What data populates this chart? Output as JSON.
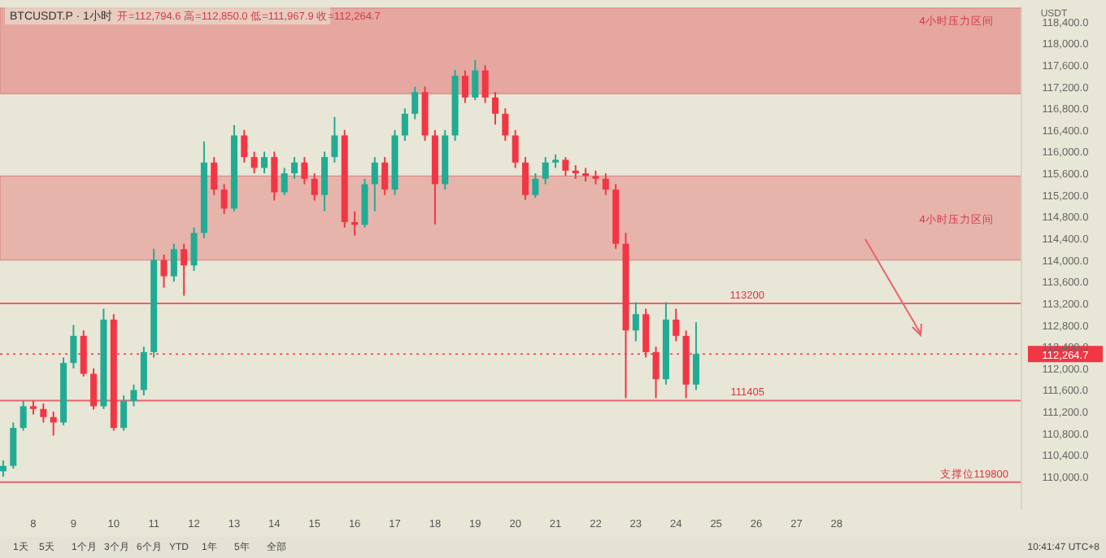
{
  "chart_data": {
    "type": "candlestick",
    "title": "BTCUSDT.P · 1小时",
    "ylabel": "USDT",
    "annotations": [
      "开=112,794.6 高=112,850.0 低=111,967.9 收=112,264.7",
      "1天",
      "5天",
      "1个月",
      "3个月",
      "6个月",
      "YTD",
      "1年",
      "5年",
      "全部",
      "10:41:47 UTC+8"
    ],
    "x": [
      7.25,
      7.5,
      7.75,
      8,
      8.25,
      8.5,
      8.75,
      9,
      9.25,
      9.5,
      9.75,
      10,
      10.25,
      10.5,
      10.75,
      11,
      11.25,
      11.5,
      11.75,
      12,
      12.25,
      12.5,
      12.75,
      13,
      13.25,
      13.5,
      13.75,
      14,
      14.25,
      14.5,
      14.75,
      15,
      15.25,
      15.5,
      15.75,
      16,
      16.25,
      16.5,
      16.75,
      17,
      17.25,
      17.5,
      17.75,
      18,
      18.25,
      18.5,
      18.75,
      19,
      19.25,
      19.5,
      19.75,
      20,
      20.25,
      20.5,
      20.75,
      21,
      21.25,
      21.5,
      21.75,
      22,
      22.25,
      22.5,
      22.75,
      23,
      23.25,
      23.5,
      23.75,
      24,
      24.25,
      24.5
    ],
    "ohlc": [
      [
        110100,
        110300,
        110000,
        110200
      ],
      [
        110200,
        111000,
        110150,
        110900
      ],
      [
        110900,
        111400,
        110850,
        111300
      ],
      [
        111300,
        111400,
        111150,
        111250
      ],
      [
        111250,
        111350,
        111000,
        111100
      ],
      [
        111100,
        111200,
        110760,
        111000
      ],
      [
        111000,
        112200,
        110950,
        112100
      ],
      [
        112100,
        112800,
        112000,
        112600
      ],
      [
        112600,
        112700,
        111850,
        111900
      ],
      [
        111900,
        112000,
        111240,
        111300
      ],
      [
        111300,
        113100,
        111250,
        112900
      ],
      [
        112900,
        113000,
        110850,
        110900
      ],
      [
        110900,
        111500,
        110850,
        111400
      ],
      [
        111400,
        111700,
        111300,
        111600
      ],
      [
        111600,
        112400,
        111500,
        112300
      ],
      [
        112300,
        114210,
        112200,
        114000
      ],
      [
        114000,
        114100,
        113490,
        113700
      ],
      [
        113700,
        114300,
        113600,
        114200
      ],
      [
        114200,
        114300,
        113340,
        113900
      ],
      [
        113900,
        114600,
        113800,
        114500
      ],
      [
        114500,
        116190,
        114400,
        115800
      ],
      [
        115800,
        115900,
        115200,
        115300
      ],
      [
        115300,
        115400,
        114850,
        114950
      ],
      [
        114950,
        116490,
        114900,
        116300
      ],
      [
        116300,
        116400,
        115800,
        115900
      ],
      [
        115900,
        116000,
        115600,
        115700
      ],
      [
        115700,
        116000,
        115600,
        115900
      ],
      [
        115900,
        116000,
        115100,
        115250
      ],
      [
        115250,
        115700,
        115200,
        115600
      ],
      [
        115600,
        115900,
        115500,
        115800
      ],
      [
        115800,
        115900,
        115400,
        115500
      ],
      [
        115500,
        115600,
        115100,
        115200
      ],
      [
        115200,
        116000,
        114900,
        115900
      ],
      [
        115900,
        116640,
        115800,
        116300
      ],
      [
        116300,
        116400,
        114600,
        114700
      ],
      [
        114700,
        114900,
        114450,
        114650
      ],
      [
        114650,
        115500,
        114600,
        115400
      ],
      [
        115400,
        115900,
        114900,
        115800
      ],
      [
        115800,
        115900,
        115200,
        115300
      ],
      [
        115300,
        116400,
        115200,
        116300
      ],
      [
        116300,
        116800,
        116200,
        116700
      ],
      [
        116700,
        117200,
        116600,
        117100
      ],
      [
        117100,
        117200,
        116200,
        116300
      ],
      [
        116300,
        116400,
        114660,
        115400
      ],
      [
        115400,
        116400,
        115300,
        116300
      ],
      [
        116300,
        117510,
        116200,
        117400
      ],
      [
        117400,
        117500,
        116900,
        117000
      ],
      [
        117000,
        117690,
        116950,
        117500
      ],
      [
        117500,
        117600,
        116900,
        117000
      ],
      [
        117000,
        117100,
        116500,
        116700
      ],
      [
        116700,
        116800,
        116200,
        116300
      ],
      [
        116300,
        116400,
        115700,
        115800
      ],
      [
        115800,
        115900,
        115110,
        115200
      ],
      [
        115200,
        115600,
        115150,
        115500
      ],
      [
        115500,
        115900,
        115400,
        115800
      ],
      [
        115800,
        115950,
        115700,
        115850
      ],
      [
        115850,
        115900,
        115550,
        115650
      ],
      [
        115650,
        115750,
        115500,
        115600
      ],
      [
        115600,
        115700,
        115450,
        115550
      ],
      [
        115550,
        115650,
        115400,
        115500
      ],
      [
        115500,
        115600,
        115200,
        115300
      ],
      [
        115300,
        115400,
        114210,
        114300
      ],
      [
        114300,
        114500,
        111450,
        112700
      ],
      [
        112700,
        113220,
        112500,
        113000
      ],
      [
        113000,
        113100,
        112200,
        112300
      ],
      [
        112300,
        112400,
        111450,
        111800
      ],
      [
        111800,
        113220,
        111700,
        112900
      ],
      [
        112900,
        113100,
        112500,
        112600
      ],
      [
        112600,
        112700,
        111450,
        111700
      ],
      [
        111700,
        112850,
        111600,
        112265
      ]
    ],
    "colors": [
      "#22ab94",
      "#22ab94",
      "#22ab94",
      "#f23645",
      "#f23645",
      "#f23645",
      "#22ab94",
      "#22ab94",
      "#f23645",
      "#f23645",
      "#22ab94",
      "#f23645",
      "#22ab94",
      "#22ab94",
      "#22ab94",
      "#22ab94",
      "#f23645",
      "#22ab94",
      "#f23645",
      "#22ab94",
      "#22ab94",
      "#f23645",
      "#f23645",
      "#22ab94",
      "#f23645",
      "#f23645",
      "#22ab94",
      "#f23645",
      "#22ab94",
      "#22ab94",
      "#f23645",
      "#f23645",
      "#22ab94",
      "#22ab94",
      "#f23645",
      "#f23645",
      "#22ab94",
      "#22ab94",
      "#f23645",
      "#22ab94",
      "#22ab94",
      "#22ab94",
      "#f23645",
      "#f23645",
      "#22ab94",
      "#22ab94",
      "#f23645",
      "#22ab94",
      "#f23645",
      "#f23645",
      "#f23645",
      "#f23645",
      "#f23645",
      "#22ab94",
      "#22ab94",
      "#22ab94",
      "#f23645",
      "#f23645",
      "#f23645",
      "#f23645",
      "#f23645",
      "#f23645",
      "#f23645",
      "#22ab94",
      "#f23645",
      "#f23645",
      "#22ab94",
      "#f23645",
      "#f23645",
      "#22ab94"
    ],
    "xlim": [
      7.17,
      32.6
    ],
    "xticks": [
      8,
      9,
      10,
      11,
      12,
      13,
      14,
      15,
      16,
      17,
      18,
      19,
      20,
      21,
      22,
      23,
      24,
      25,
      26,
      27,
      28
    ],
    "ylim": [
      109400,
      118650
    ],
    "yticks": [
      {
        "value": 110000,
        "label": "110,000.0"
      },
      {
        "value": 110400,
        "label": "110,400.0"
      },
      {
        "value": 110800,
        "label": "110,800.0"
      },
      {
        "value": 111200,
        "label": "111,200.0"
      },
      {
        "value": 111600,
        "label": "111,600.0"
      },
      {
        "value": 112000,
        "label": "112,000.0"
      },
      {
        "value": 112400,
        "label": "112,400.0"
      },
      {
        "value": 112800,
        "label": "112,800.0"
      },
      {
        "value": 113200,
        "label": "113,200.0"
      },
      {
        "value": 113600,
        "label": "113,600.0"
      },
      {
        "value": 114000,
        "label": "114,000.0"
      },
      {
        "value": 114400,
        "label": "114,400.0"
      },
      {
        "value": 114800,
        "label": "114,800.0"
      },
      {
        "value": 115200,
        "label": "115,200.0"
      },
      {
        "value": 115600,
        "label": "115,600.0"
      },
      {
        "value": 116000,
        "label": "116,000.0"
      },
      {
        "value": 116400,
        "label": "116,400.0"
      },
      {
        "value": 116800,
        "label": "116,800.0"
      },
      {
        "value": 117200,
        "label": "117,200.0"
      },
      {
        "value": 117600,
        "label": "117,600.0"
      },
      {
        "value": 118000,
        "label": "118,000.0"
      },
      {
        "value": 118400,
        "label": "118,400.0"
      }
    ],
    "bands": [
      {
        "axis": "y",
        "from": 117070,
        "to": 118650,
        "label": "4小时压力区间",
        "color": "#e5a39c"
      },
      {
        "axis": "y",
        "from": 114000,
        "to": 115550,
        "label": "4小时压力区间",
        "color": "#e5a39c"
      }
    ],
    "ref_lines": [
      {
        "axis": "y",
        "value": 112264.7,
        "label": "112,264.7",
        "color": "#f23645",
        "line_style": "dotted"
      },
      {
        "axis": "y",
        "value": 113200,
        "label": "113200",
        "color": "#e8636b",
        "line_style": "solid"
      },
      {
        "axis": "y",
        "value": 111405,
        "label": "111405",
        "color": "#e8636b",
        "line_style": "solid"
      },
      {
        "axis": "y",
        "value": 109900,
        "label": "支撑位119800",
        "color": "#e8636b",
        "line_style": "solid"
      }
    ]
  }
}
